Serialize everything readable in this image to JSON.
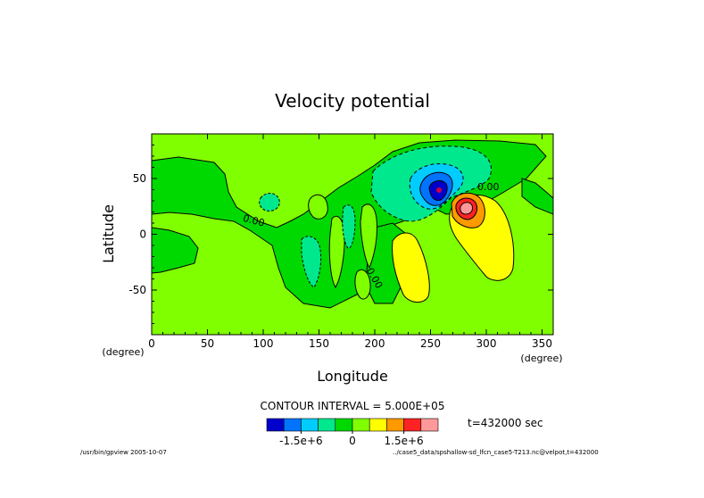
{
  "chart_data": {
    "type": "heatmap",
    "title": "Velocity potential",
    "xlabel": "Longitude",
    "ylabel": "Latitude",
    "x_unit": "(degree)",
    "y_unit": "(degree)",
    "xlim": [
      0,
      360
    ],
    "ylim": [
      -90,
      90
    ],
    "x_ticks": [
      0,
      50,
      100,
      150,
      200,
      250,
      300,
      350
    ],
    "y_ticks": [
      -50,
      0,
      50
    ],
    "contour_interval_text": "CONTOUR INTERVAL = 5.000E+05",
    "time_text": "t=432000 sec",
    "contour_labels": [
      "0.00",
      "0.00",
      "0.00"
    ],
    "colorbar": {
      "levels": [
        -2500000,
        -2000000,
        -1500000,
        -1000000,
        -500000,
        0,
        500000,
        1000000,
        1500000,
        2000000,
        2500000
      ],
      "tick_labels": [
        "-1.5e+6",
        "0",
        "1.5e+6"
      ],
      "tick_values": [
        -1500000,
        0,
        1500000
      ],
      "colors": [
        "#0000cc",
        "#0073ff",
        "#00ccff",
        "#00e88e",
        "#00d900",
        "#80ff00",
        "#ffff00",
        "#ff9900",
        "#ff2222",
        "#ff9999"
      ]
    },
    "features": [
      {
        "name": "negative-center",
        "lon": 260,
        "lat": 38,
        "value": -2200000
      },
      {
        "name": "positive-center",
        "lon": 283,
        "lat": 22,
        "value": 2200000
      },
      {
        "name": "positive-lobe",
        "lon": 233,
        "lat": -28,
        "value": 700000
      },
      {
        "name": "negative-lobe-north",
        "lon": 268,
        "lat": 48,
        "value": -700000
      }
    ]
  },
  "footer": {
    "left": "/usr/bin/gpview  2005-10-07",
    "right": "../case5_data/spshallow-sd_lfcn_case5-T213.nc@velpot,t=432000"
  }
}
